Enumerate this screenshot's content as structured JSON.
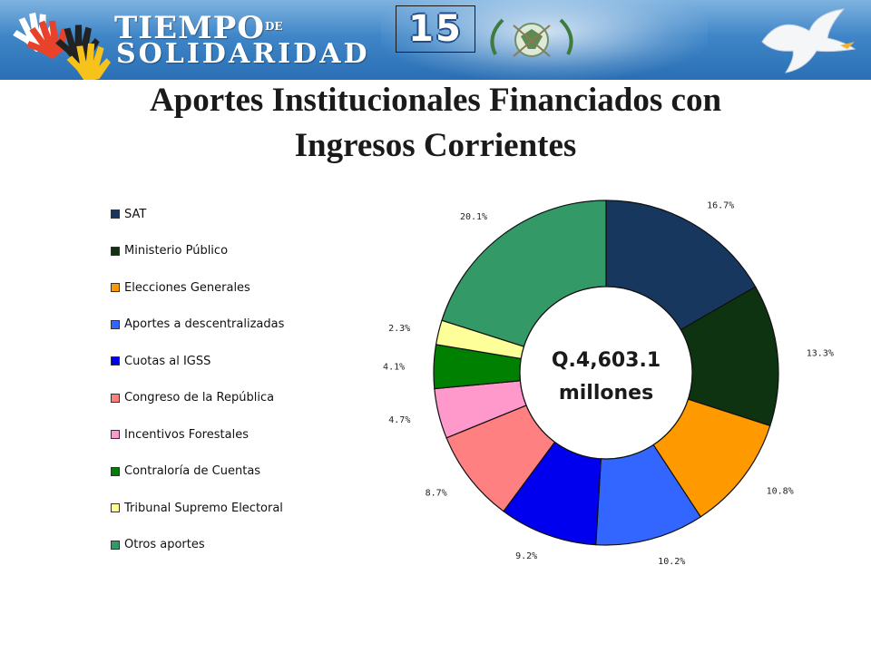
{
  "header": {
    "logo_line1": "TIEMPO",
    "logo_de": "DE",
    "logo_line2": "SOLIDARIDAD",
    "slide_number": "15"
  },
  "title": {
    "line1": "Aportes Institucionales Financiados con",
    "line2": "Ingresos Corrientes"
  },
  "chart_data": {
    "type": "pie",
    "variant": "doughnut",
    "center_label_line1": "Q.4,603.1",
    "center_label_line2": "millones",
    "legend_position": "left",
    "slices": [
      {
        "name": "SAT",
        "value": 16.7,
        "label": "16.7%",
        "color": "#17375e"
      },
      {
        "name": "Ministerio Público",
        "value": 13.3,
        "label": "13.3%",
        "color": "#0d3310"
      },
      {
        "name": "Elecciones Generales",
        "value": 10.8,
        "label": "10.8%",
        "color": "#ff9900"
      },
      {
        "name": "Aportes a descentralizadas",
        "value": 10.2,
        "label": "10.2%",
        "color": "#3366ff"
      },
      {
        "name": "Cuotas al IGSS",
        "value": 9.2,
        "label": "9.2%",
        "color": "#0000ee"
      },
      {
        "name": "Congreso de la República",
        "value": 8.7,
        "label": "8.7%",
        "color": "#ff8080"
      },
      {
        "name": "Incentivos Forestales",
        "value": 4.7,
        "label": "4.7%",
        "color": "#ff99cc"
      },
      {
        "name": "Contraloría de Cuentas",
        "value": 4.1,
        "label": "4.1%",
        "color": "#008000"
      },
      {
        "name": "Tribunal Supremo Electoral",
        "value": 2.3,
        "label": "2.3%",
        "color": "#ffff99"
      },
      {
        "name": "Otros aportes",
        "value": 20.1,
        "label": "20.1%",
        "color": "#339966"
      }
    ]
  }
}
